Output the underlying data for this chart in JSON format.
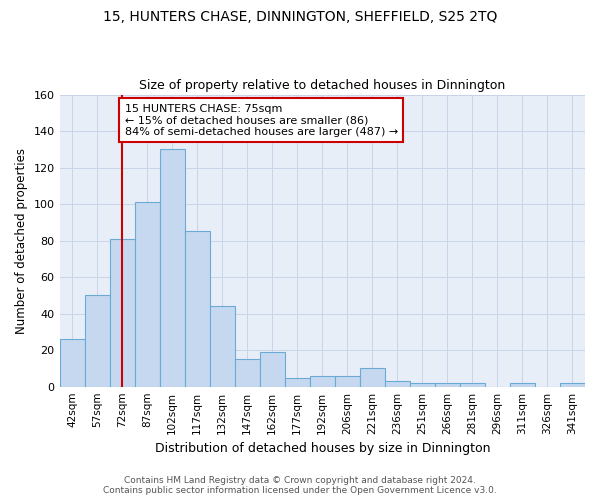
{
  "title_line1": "15, HUNTERS CHASE, DINNINGTON, SHEFFIELD, S25 2TQ",
  "title_line2": "Size of property relative to detached houses in Dinnington",
  "xlabel": "Distribution of detached houses by size in Dinnington",
  "ylabel": "Number of detached properties",
  "categories": [
    "42sqm",
    "57sqm",
    "72sqm",
    "87sqm",
    "102sqm",
    "117sqm",
    "132sqm",
    "147sqm",
    "162sqm",
    "177sqm",
    "192sqm",
    "206sqm",
    "221sqm",
    "236sqm",
    "251sqm",
    "266sqm",
    "281sqm",
    "296sqm",
    "311sqm",
    "326sqm",
    "341sqm"
  ],
  "values": [
    26,
    50,
    81,
    101,
    130,
    85,
    44,
    15,
    19,
    5,
    6,
    6,
    10,
    3,
    2,
    2,
    2,
    0,
    2,
    0,
    2
  ],
  "bar_color": "#c5d8f0",
  "bar_edge_color": "#6aaad4",
  "red_line_x": 2,
  "annotation_text": "15 HUNTERS CHASE: 75sqm\n← 15% of detached houses are smaller (86)\n84% of semi-detached houses are larger (487) →",
  "annotation_box_color": "#ffffff",
  "annotation_box_edge": "#cc0000",
  "annotation_text_color": "#000000",
  "red_line_color": "#cc0000",
  "ylim": [
    0,
    160
  ],
  "yticks": [
    0,
    20,
    40,
    60,
    80,
    100,
    120,
    140,
    160
  ],
  "footer_line1": "Contains HM Land Registry data © Crown copyright and database right 2024.",
  "footer_line2": "Contains public sector information licensed under the Open Government Licence v3.0.",
  "grid_color": "#c8d4e8",
  "background_color": "#e8eef8"
}
